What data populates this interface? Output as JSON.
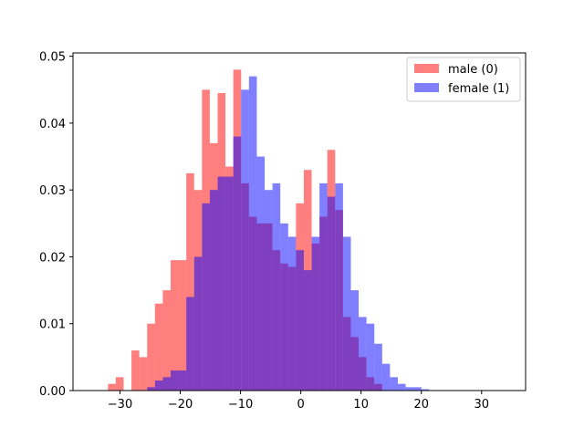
{
  "chart_data": {
    "type": "bar",
    "subtype": "overlaid histogram",
    "title": "",
    "xlabel": "",
    "ylabel": "",
    "xlim": [
      -37.8,
      37.3
    ],
    "ylim": [
      0,
      0.0505
    ],
    "grid": false,
    "legend_position": "top-right",
    "bin_edges": [
      -32,
      -30.7,
      -29.4,
      -28.1,
      -26.8,
      -25.5,
      -24.2,
      -22.9,
      -21.6,
      -20.3,
      -19,
      -17.7,
      -16.4,
      -15.1,
      -13.8,
      -12.5,
      -11.2,
      -9.9,
      -8.6,
      -7.3,
      -6,
      -4.7,
      -3.4,
      -2.1,
      -0.8,
      0.5,
      1.8,
      3.1,
      4.4,
      5.7,
      7,
      8.3,
      9.6,
      10.9,
      12.2,
      13.5,
      14.8,
      16.1,
      17.4,
      18.7,
      20,
      21.3,
      22.6,
      23.9,
      25.2
    ],
    "series": [
      {
        "name": "male (0)",
        "color": "#ff0000",
        "alpha": 0.5,
        "values": [
          0.001,
          0.002,
          0,
          0.006,
          0.005,
          0.01,
          0.013,
          0.015,
          0.0195,
          0.0195,
          0.0325,
          0.03,
          0.045,
          0.037,
          0.0445,
          0.0335,
          0.048,
          0.031,
          0.026,
          0.025,
          0.025,
          0.021,
          0.019,
          0.0185,
          0.028,
          0.033,
          0.022,
          0.026,
          0.036,
          0.027,
          0.011,
          0.008,
          0.005,
          0.002,
          0.001,
          0,
          0,
          0,
          0,
          0,
          0,
          0,
          0,
          0
        ]
      },
      {
        "name": "female (1)",
        "color": "#0000ff",
        "alpha": 0.5,
        "values": [
          0,
          0,
          0,
          0,
          0,
          0.0005,
          0.0015,
          0.002,
          0.003,
          0.003,
          0.014,
          0.02,
          0.028,
          0.03,
          0.032,
          0.032,
          0.038,
          0.045,
          0.047,
          0.035,
          0.03,
          0.031,
          0.025,
          0.023,
          0.021,
          0.018,
          0.023,
          0.031,
          0.029,
          0.031,
          0.023,
          0.015,
          0.011,
          0.01,
          0.007,
          0.004,
          0.002,
          0.001,
          0.0005,
          0.0005,
          0.0002,
          0,
          0,
          0
        ]
      }
    ],
    "x_ticks": [
      -30,
      -20,
      -10,
      0,
      10,
      20,
      30
    ],
    "x_tick_labels": [
      "−30",
      "−20",
      "−10",
      "0",
      "10",
      "20",
      "30"
    ],
    "y_ticks": [
      0,
      0.01,
      0.02,
      0.03,
      0.04,
      0.05
    ],
    "y_tick_labels": [
      "0.00",
      "0.01",
      "0.02",
      "0.03",
      "0.04",
      "0.05"
    ]
  }
}
